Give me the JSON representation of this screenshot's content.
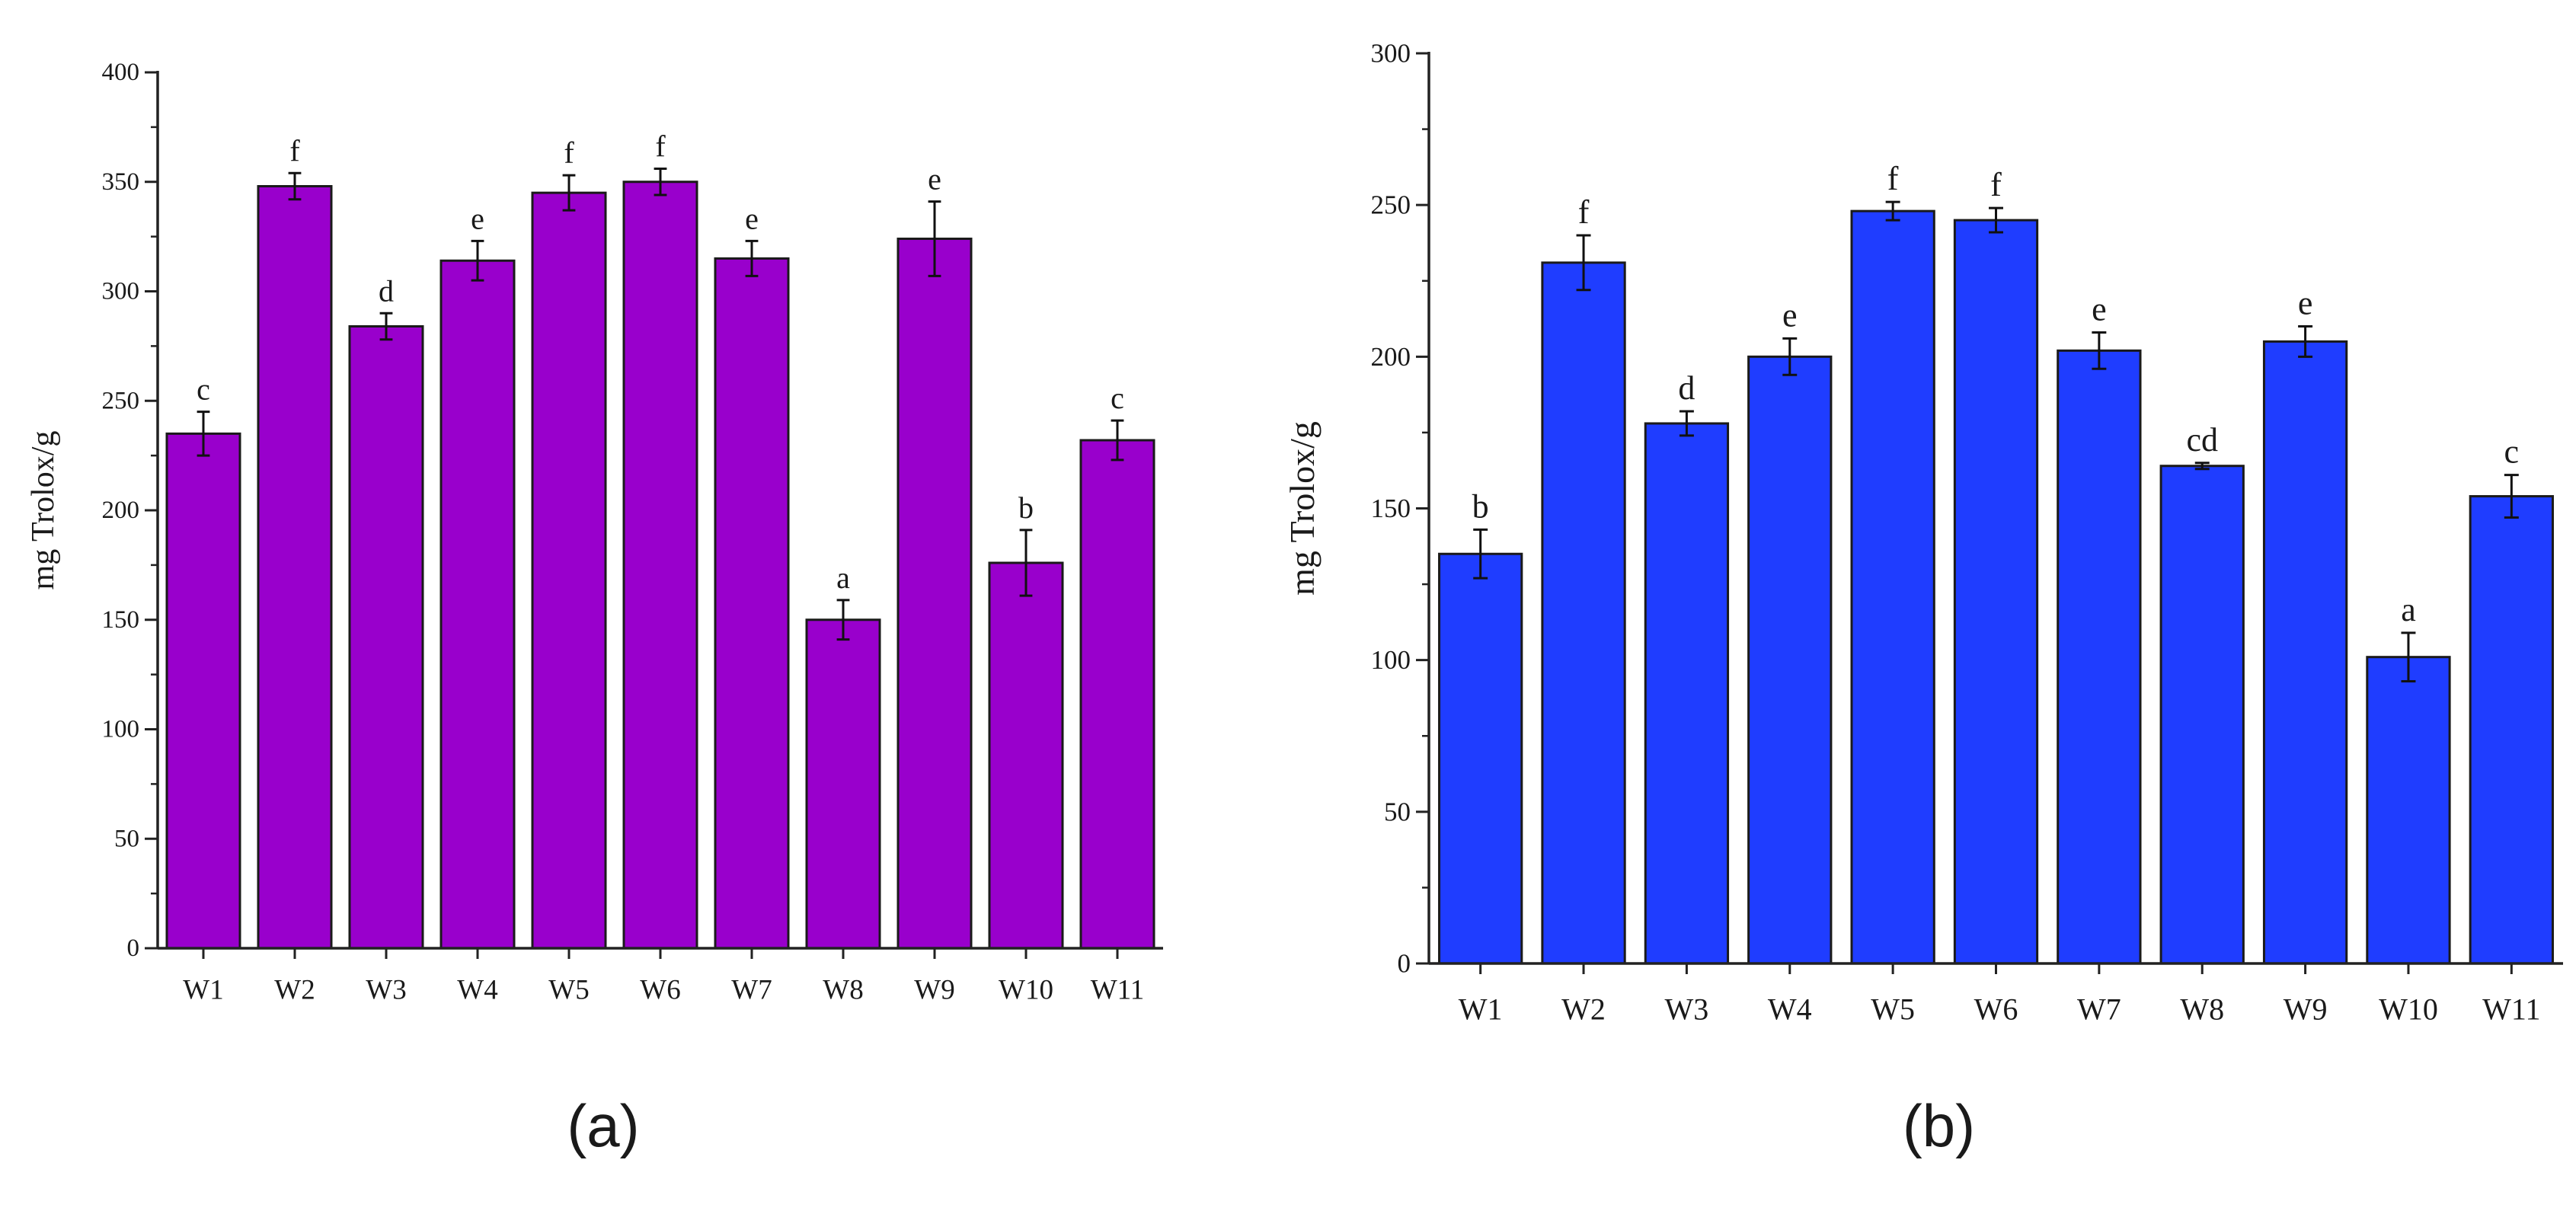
{
  "chart_data": [
    {
      "type": "bar",
      "panel_label": "(a)",
      "title": "",
      "xlabel": "",
      "ylabel": "mg Trolox/g",
      "ylim": [
        0,
        400
      ],
      "yticks": [
        0,
        50,
        100,
        150,
        200,
        250,
        300,
        350,
        400
      ],
      "categories": [
        "W1",
        "W2",
        "W3",
        "W4",
        "W5",
        "W6",
        "W7",
        "W8",
        "W9",
        "W10",
        "W11"
      ],
      "values": [
        235,
        348,
        284,
        314,
        345,
        350,
        315,
        150,
        324,
        176,
        232
      ],
      "errors": [
        10,
        6,
        6,
        9,
        8,
        6,
        8,
        9,
        17,
        15,
        9
      ],
      "significance": [
        "c",
        "f",
        "d",
        "e",
        "f",
        "f",
        "e",
        "a",
        "e",
        "b",
        "c"
      ],
      "bar_color": "#9900CC",
      "grid": false
    },
    {
      "type": "bar",
      "panel_label": "(b)",
      "title": "",
      "xlabel": "",
      "ylabel": "mg Trolox/g",
      "ylim": [
        0,
        300
      ],
      "yticks": [
        0,
        50,
        100,
        150,
        200,
        250,
        300
      ],
      "categories": [
        "W1",
        "W2",
        "W3",
        "W4",
        "W5",
        "W6",
        "W7",
        "W8",
        "W9",
        "W10",
        "W11"
      ],
      "values": [
        135,
        231,
        178,
        200,
        248,
        245,
        202,
        164,
        205,
        101,
        154
      ],
      "errors": [
        8,
        9,
        4,
        6,
        3,
        4,
        6,
        1,
        5,
        8,
        7
      ],
      "significance": [
        "b",
        "f",
        "d",
        "e",
        "f",
        "f",
        "e",
        "cd",
        "e",
        "a",
        "c"
      ],
      "bar_color": "#1F3DFF",
      "grid": false
    }
  ]
}
